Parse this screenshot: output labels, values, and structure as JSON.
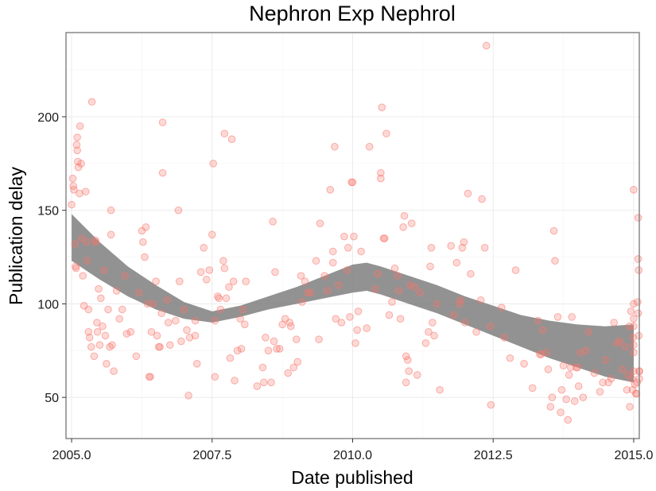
{
  "chart_data": {
    "type": "scatter",
    "title": "Nephron Exp Nephrol",
    "xlabel": "Date published",
    "ylabel": "Publication delay",
    "xlim": [
      2004.9,
      2015.1
    ],
    "ylim": [
      28,
      245
    ],
    "x_ticks": [
      2005.0,
      2007.5,
      2010.0,
      2012.5,
      2015.0
    ],
    "x_tick_labels": [
      "2005.0",
      "2007.5",
      "2010.0",
      "2012.5",
      "2015.0"
    ],
    "y_ticks": [
      50,
      100,
      150,
      200
    ],
    "y_tick_labels": [
      "50",
      "100",
      "150",
      "200"
    ],
    "grid": true,
    "legend": "none",
    "colors": {
      "points": "#f8766d",
      "smooth_band": "#7f7f7f"
    },
    "series": [
      {
        "type": "scatter",
        "points": [
          [
            2005.0,
            153
          ],
          [
            2005.02,
            167
          ],
          [
            2005.03,
            163
          ],
          [
            2005.04,
            161
          ],
          [
            2005.06,
            132
          ],
          [
            2005.07,
            120
          ],
          [
            2005.08,
            119
          ],
          [
            2005.09,
            185
          ],
          [
            2005.1,
            189
          ],
          [
            2005.1,
            182
          ],
          [
            2005.11,
            176
          ],
          [
            2005.12,
            173
          ],
          [
            2005.14,
            159
          ],
          [
            2005.15,
            195
          ],
          [
            2005.17,
            175
          ],
          [
            2005.18,
            135
          ],
          [
            2005.2,
            115
          ],
          [
            2005.22,
            99
          ],
          [
            2005.25,
            160
          ],
          [
            2005.27,
            133
          ],
          [
            2005.28,
            123
          ],
          [
            2005.3,
            97
          ],
          [
            2005.3,
            85
          ],
          [
            2005.32,
            82
          ],
          [
            2005.35,
            77
          ],
          [
            2005.36,
            208
          ],
          [
            2005.4,
            72
          ],
          [
            2005.42,
            134
          ],
          [
            2005.43,
            133
          ],
          [
            2005.45,
            90
          ],
          [
            2005.46,
            85
          ],
          [
            2005.48,
            108
          ],
          [
            2005.5,
            78
          ],
          [
            2005.52,
            103
          ],
          [
            2005.55,
            88
          ],
          [
            2005.58,
            118
          ],
          [
            2005.6,
            83
          ],
          [
            2005.62,
            68
          ],
          [
            2005.65,
            97
          ],
          [
            2005.68,
            77
          ],
          [
            2005.7,
            150
          ],
          [
            2005.7,
            137
          ],
          [
            2005.72,
            78
          ],
          [
            2005.75,
            64
          ],
          [
            2005.8,
            107
          ],
          [
            2005.85,
            92
          ],
          [
            2005.9,
            97
          ],
          [
            2005.95,
            115
          ],
          [
            2005.98,
            84
          ],
          [
            2006.05,
            85
          ],
          [
            2006.15,
            72
          ],
          [
            2006.2,
            106
          ],
          [
            2006.25,
            139
          ],
          [
            2006.27,
            133
          ],
          [
            2006.3,
            125
          ],
          [
            2006.32,
            141
          ],
          [
            2006.35,
            100
          ],
          [
            2006.38,
            61
          ],
          [
            2006.4,
            61
          ],
          [
            2006.42,
            85
          ],
          [
            2006.45,
            100
          ],
          [
            2006.5,
            112
          ],
          [
            2006.52,
            83
          ],
          [
            2006.55,
            77
          ],
          [
            2006.57,
            77
          ],
          [
            2006.6,
            95
          ],
          [
            2006.62,
            170
          ],
          [
            2006.62,
            197
          ],
          [
            2006.7,
            102
          ],
          [
            2006.72,
            90
          ],
          [
            2006.75,
            78
          ],
          [
            2006.85,
            91
          ],
          [
            2006.9,
            150
          ],
          [
            2006.92,
            112
          ],
          [
            2006.95,
            80
          ],
          [
            2007.0,
            97
          ],
          [
            2007.05,
            86
          ],
          [
            2007.08,
            51
          ],
          [
            2007.1,
            82
          ],
          [
            2007.2,
            91
          ],
          [
            2007.2,
            83
          ],
          [
            2007.23,
            68
          ],
          [
            2007.3,
            117
          ],
          [
            2007.35,
            130
          ],
          [
            2007.4,
            113
          ],
          [
            2007.45,
            118
          ],
          [
            2007.5,
            137
          ],
          [
            2007.52,
            175
          ],
          [
            2007.55,
            91
          ],
          [
            2007.55,
            61
          ],
          [
            2007.6,
            104
          ],
          [
            2007.62,
            103
          ],
          [
            2007.65,
            97
          ],
          [
            2007.7,
            123
          ],
          [
            2007.72,
            119
          ],
          [
            2007.72,
            191
          ],
          [
            2007.75,
            103
          ],
          [
            2007.8,
            109
          ],
          [
            2007.82,
            71
          ],
          [
            2007.85,
            188
          ],
          [
            2007.88,
            112
          ],
          [
            2007.9,
            59
          ],
          [
            2007.95,
            75
          ],
          [
            2008.0,
            92
          ],
          [
            2008.02,
            76
          ],
          [
            2008.05,
            97
          ],
          [
            2008.08,
            89
          ],
          [
            2008.1,
            112
          ],
          [
            2008.3,
            56
          ],
          [
            2008.4,
            66
          ],
          [
            2008.42,
            58
          ],
          [
            2008.45,
            82
          ],
          [
            2008.5,
            75
          ],
          [
            2008.55,
            58
          ],
          [
            2008.58,
            144
          ],
          [
            2008.6,
            80
          ],
          [
            2008.62,
            117
          ],
          [
            2008.65,
            76
          ],
          [
            2008.7,
            76
          ],
          [
            2008.75,
            89
          ],
          [
            2008.8,
            92
          ],
          [
            2008.85,
            63
          ],
          [
            2008.88,
            90
          ],
          [
            2008.9,
            88
          ],
          [
            2008.95,
            66
          ],
          [
            2009.0,
            81
          ],
          [
            2009.02,
            69
          ],
          [
            2009.08,
            115
          ],
          [
            2009.1,
            101
          ],
          [
            2009.15,
            112
          ],
          [
            2009.2,
            106
          ],
          [
            2009.25,
            106
          ],
          [
            2009.35,
            123
          ],
          [
            2009.4,
            81
          ],
          [
            2009.42,
            143
          ],
          [
            2009.5,
            115
          ],
          [
            2009.55,
            107
          ],
          [
            2009.6,
            161
          ],
          [
            2009.65,
            128
          ],
          [
            2009.65,
            122
          ],
          [
            2009.68,
            184
          ],
          [
            2009.7,
            92
          ],
          [
            2009.75,
            110
          ],
          [
            2009.8,
            90
          ],
          [
            2009.85,
            136
          ],
          [
            2009.9,
            118
          ],
          [
            2009.92,
            130
          ],
          [
            2009.95,
            93
          ],
          [
            2009.98,
            165
          ],
          [
            2010.0,
            165
          ],
          [
            2010.02,
            136
          ],
          [
            2010.05,
            79
          ],
          [
            2010.08,
            86
          ],
          [
            2010.1,
            96
          ],
          [
            2010.15,
            128
          ],
          [
            2010.25,
            87
          ],
          [
            2010.3,
            184
          ],
          [
            2010.4,
            108
          ],
          [
            2010.45,
            116
          ],
          [
            2010.5,
            167
          ],
          [
            2010.5,
            170
          ],
          [
            2010.52,
            205
          ],
          [
            2010.55,
            135
          ],
          [
            2010.57,
            135
          ],
          [
            2010.6,
            191
          ],
          [
            2010.65,
            94
          ],
          [
            2010.7,
            101
          ],
          [
            2010.75,
            119
          ],
          [
            2010.8,
            115
          ],
          [
            2010.82,
            107
          ],
          [
            2010.85,
            92
          ],
          [
            2010.9,
            141
          ],
          [
            2010.92,
            147
          ],
          [
            2010.95,
            58
          ],
          [
            2010.95,
            72
          ],
          [
            2010.98,
            70
          ],
          [
            2011.0,
            64
          ],
          [
            2011.02,
            110
          ],
          [
            2011.05,
            143
          ],
          [
            2011.1,
            109
          ],
          [
            2011.15,
            62
          ],
          [
            2011.2,
            106
          ],
          [
            2011.3,
            79
          ],
          [
            2011.35,
            85
          ],
          [
            2011.38,
            120
          ],
          [
            2011.4,
            130
          ],
          [
            2011.42,
            90
          ],
          [
            2011.45,
            83
          ],
          [
            2011.5,
            100
          ],
          [
            2011.55,
            54
          ],
          [
            2011.75,
            131
          ],
          [
            2011.8,
            94
          ],
          [
            2011.85,
            122
          ],
          [
            2011.9,
            100
          ],
          [
            2011.92,
            102
          ],
          [
            2011.95,
            130
          ],
          [
            2011.98,
            133
          ],
          [
            2012.0,
            90
          ],
          [
            2012.05,
            159
          ],
          [
            2012.1,
            116
          ],
          [
            2012.2,
            85
          ],
          [
            2012.28,
            102
          ],
          [
            2012.3,
            156
          ],
          [
            2012.35,
            130
          ],
          [
            2012.38,
            238
          ],
          [
            2012.45,
            88
          ],
          [
            2012.46,
            46
          ],
          [
            2012.65,
            98
          ],
          [
            2012.7,
            82
          ],
          [
            2012.8,
            71
          ],
          [
            2012.9,
            118
          ],
          [
            2013.05,
            68
          ],
          [
            2013.2,
            55
          ],
          [
            2013.3,
            91
          ],
          [
            2013.33,
            73
          ],
          [
            2013.35,
            73
          ],
          [
            2013.38,
            86
          ],
          [
            2013.45,
            74
          ],
          [
            2013.48,
            65
          ],
          [
            2013.52,
            45
          ],
          [
            2013.55,
            50
          ],
          [
            2013.58,
            139
          ],
          [
            2013.6,
            123
          ],
          [
            2013.65,
            93
          ],
          [
            2013.7,
            42
          ],
          [
            2013.72,
            54
          ],
          [
            2013.75,
            67
          ],
          [
            2013.8,
            49
          ],
          [
            2013.83,
            38
          ],
          [
            2013.85,
            62
          ],
          [
            2013.88,
            66
          ],
          [
            2013.9,
            93
          ],
          [
            2013.95,
            48
          ],
          [
            2013.98,
            66
          ],
          [
            2014.0,
            66
          ],
          [
            2014.02,
            56
          ],
          [
            2014.05,
            74
          ],
          [
            2014.1,
            50
          ],
          [
            2014.15,
            75
          ],
          [
            2014.2,
            85
          ],
          [
            2014.3,
            63
          ],
          [
            2014.4,
            53
          ],
          [
            2014.45,
            58
          ],
          [
            2014.5,
            70
          ],
          [
            2014.55,
            58
          ],
          [
            2014.6,
            60
          ],
          [
            2014.65,
            90
          ],
          [
            2014.7,
            79
          ],
          [
            2014.75,
            80
          ],
          [
            2014.8,
            65
          ],
          [
            2014.85,
            77
          ],
          [
            2014.88,
            54
          ],
          [
            2014.9,
            62
          ],
          [
            2014.92,
            88
          ],
          [
            2014.93,
            45
          ],
          [
            2014.95,
            96
          ],
          [
            2014.97,
            60
          ],
          [
            2014.98,
            54
          ],
          [
            2014.99,
            82
          ],
          [
            2015.0,
            161
          ],
          [
            2015.0,
            92
          ],
          [
            2015.0,
            78
          ],
          [
            2015.0,
            64
          ],
          [
            2015.0,
            100
          ],
          [
            2015.0,
            88
          ],
          [
            2015.0,
            74
          ],
          [
            2015.02,
            57
          ],
          [
            2015.04,
            52
          ],
          [
            2015.05,
            52
          ],
          [
            2015.06,
            58
          ],
          [
            2015.07,
            101
          ],
          [
            2015.08,
            95
          ],
          [
            2015.08,
            146
          ],
          [
            2015.08,
            124
          ],
          [
            2015.09,
            118
          ],
          [
            2015.09,
            83
          ],
          [
            2015.1,
            64
          ],
          [
            2015.1,
            64
          ],
          [
            2015.1,
            60
          ]
        ]
      },
      {
        "type": "smooth_band",
        "x": [
          2005.0,
          2005.5,
          2006.0,
          2006.5,
          2007.0,
          2007.5,
          2008.0,
          2008.5,
          2009.0,
          2009.5,
          2010.0,
          2010.25,
          2010.5,
          2011.0,
          2011.5,
          2012.0,
          2012.5,
          2013.0,
          2013.5,
          2014.0,
          2014.5,
          2015.0
        ],
        "lower": [
          123,
          113,
          104,
          97,
          92,
          90,
          93,
          97,
          100,
          103,
          106,
          107,
          105,
          100,
          95,
          89,
          83,
          77,
          71,
          66,
          61,
          58
        ],
        "upper": [
          148,
          133,
          120,
          110,
          101,
          96,
          99,
          104,
          109,
          115,
          121,
          122,
          120,
          115,
          110,
          104,
          99,
          94,
          91,
          89,
          88,
          89
        ]
      }
    ]
  }
}
